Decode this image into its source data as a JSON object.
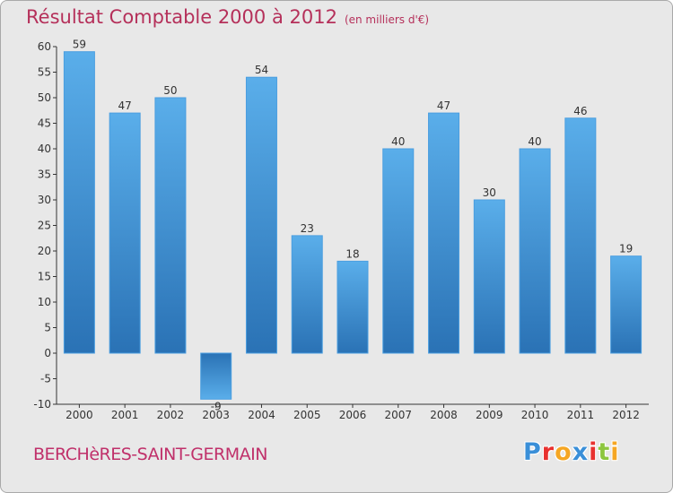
{
  "chart_data": {
    "type": "bar",
    "title": "Résultat Comptable 2000 à 2012",
    "subtitle": "(en milliers d'€)",
    "categories": [
      "2000",
      "2001",
      "2002",
      "2003",
      "2004",
      "2005",
      "2006",
      "2007",
      "2008",
      "2009",
      "2010",
      "2011",
      "2012"
    ],
    "values": [
      59,
      47,
      50,
      -9,
      54,
      23,
      18,
      40,
      47,
      30,
      40,
      46,
      19
    ],
    "ylim": [
      -10,
      60
    ],
    "yticks": [
      -10,
      -5,
      0,
      5,
      10,
      15,
      20,
      25,
      30,
      35,
      40,
      45,
      50,
      55,
      60
    ],
    "xlabel": "",
    "ylabel": "",
    "grid": false
  },
  "footer": {
    "town": "BERCHèRES-SAINT-GERMAIN",
    "logo_letters": [
      {
        "ch": "P",
        "color": "#3a8fd8"
      },
      {
        "ch": "r",
        "color": "#e8312f"
      },
      {
        "ch": "o",
        "color": "#f5a623"
      },
      {
        "ch": "x",
        "color": "#3a8fd8"
      },
      {
        "ch": "i",
        "color": "#e8312f"
      },
      {
        "ch": "t",
        "color": "#8dc63f"
      },
      {
        "ch": "i",
        "color": "#f5a623"
      }
    ]
  },
  "colors": {
    "bar_top": "#5aaeea",
    "bar_bottom": "#2a72b5",
    "axis": "#333333"
  }
}
